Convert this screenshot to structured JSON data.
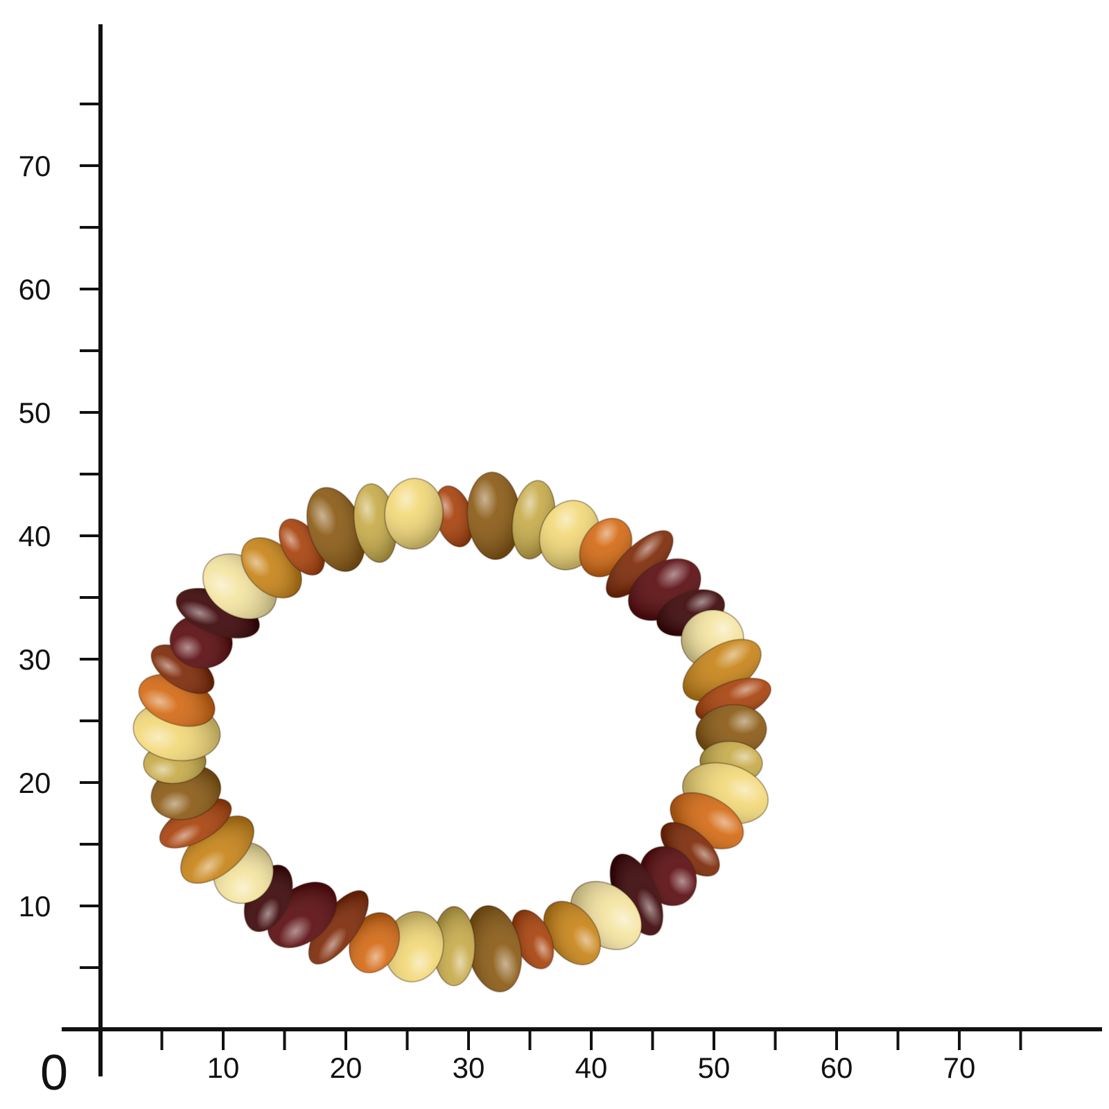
{
  "scale": {
    "origin_label": "0",
    "x_ticks": [
      {
        "value": 5,
        "label": ""
      },
      {
        "value": 10,
        "label": "10"
      },
      {
        "value": 15,
        "label": ""
      },
      {
        "value": 20,
        "label": "20"
      },
      {
        "value": 25,
        "label": ""
      },
      {
        "value": 30,
        "label": "30"
      },
      {
        "value": 35,
        "label": ""
      },
      {
        "value": 40,
        "label": "40"
      },
      {
        "value": 45,
        "label": ""
      },
      {
        "value": 50,
        "label": "50"
      },
      {
        "value": 55,
        "label": ""
      },
      {
        "value": 60,
        "label": "60"
      },
      {
        "value": 65,
        "label": ""
      },
      {
        "value": 70,
        "label": "70"
      },
      {
        "value": 75,
        "label": ""
      }
    ],
    "y_ticks": [
      {
        "value": 5,
        "label": ""
      },
      {
        "value": 10,
        "label": "10"
      },
      {
        "value": 15,
        "label": ""
      },
      {
        "value": 20,
        "label": "20"
      },
      {
        "value": 25,
        "label": ""
      },
      {
        "value": 30,
        "label": "30"
      },
      {
        "value": 35,
        "label": ""
      },
      {
        "value": 40,
        "label": "40"
      },
      {
        "value": 45,
        "label": ""
      },
      {
        "value": 50,
        "label": "50"
      },
      {
        "value": 55,
        "label": ""
      },
      {
        "value": 60,
        "label": "60"
      },
      {
        "value": 65,
        "label": ""
      },
      {
        "value": 70,
        "label": "70"
      },
      {
        "value": 75,
        "label": ""
      }
    ]
  },
  "bracelet": {
    "bead_count": 44,
    "palette": [
      "#a8420c",
      "#f2d878",
      "#5a0c10",
      "#c88418",
      "#c7ab4a",
      "#7e2a08",
      "#f4e4a0",
      "#8a5a14",
      "#d46a14",
      "#3c0608"
    ]
  }
}
